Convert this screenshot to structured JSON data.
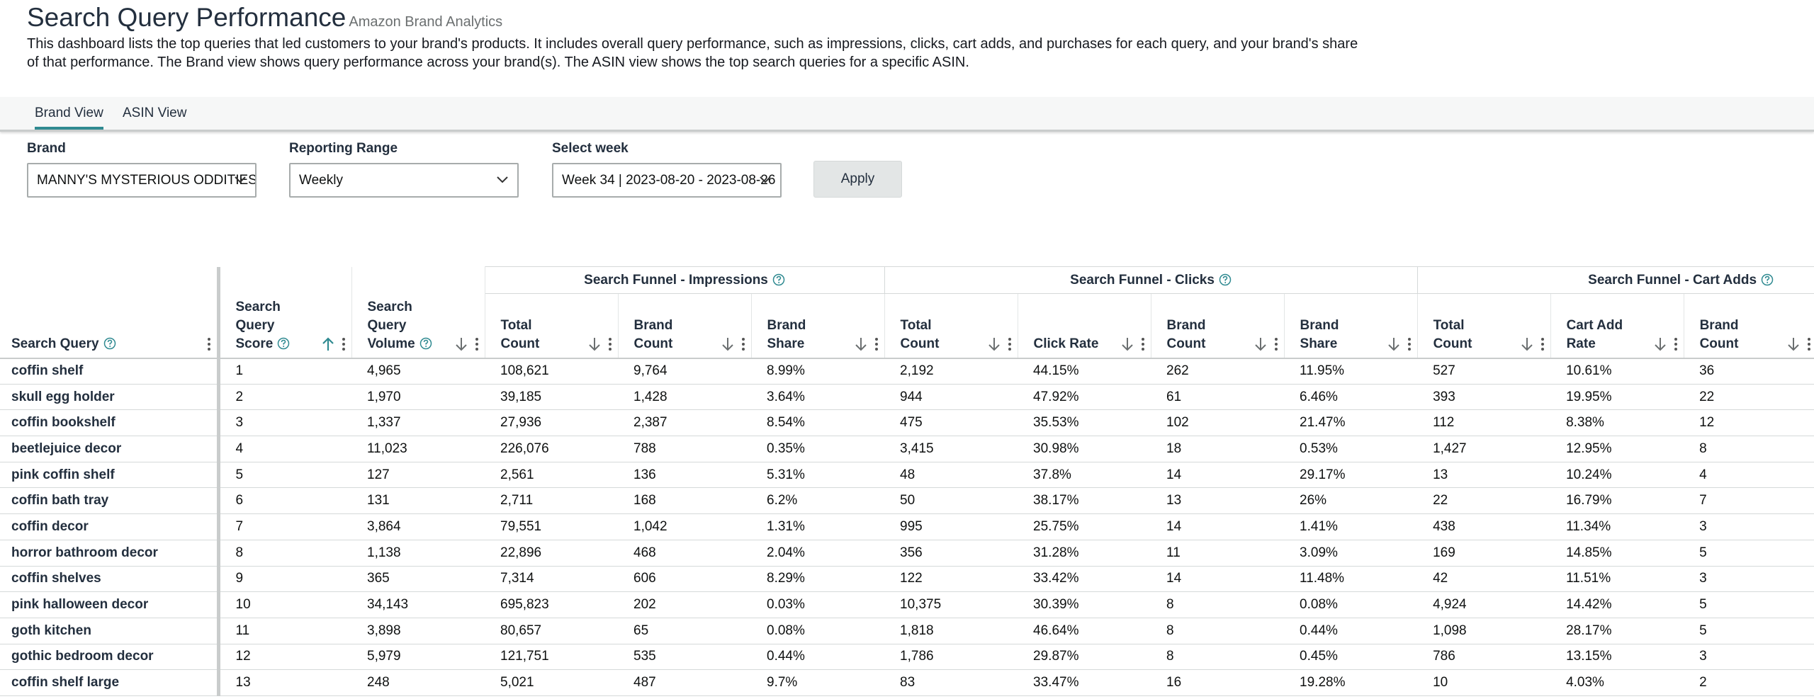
{
  "header": {
    "title": "Search Query Performance",
    "subtitle": "Amazon Brand Analytics",
    "description": "This dashboard lists the top queries that led customers to your brand's products. It includes overall query performance, such as impressions, clicks, cart adds, and purchases for each query, and your brand's share of that performance. The Brand view shows query performance across your brand(s). The ASIN view shows the top search queries for a specific ASIN."
  },
  "tabs": [
    "Brand View",
    "ASIN View"
  ],
  "filters": [
    {
      "label": "Brand",
      "value": "MANNY'S MYSTERIOUS ODDITIES"
    },
    {
      "label": "Reporting Range",
      "value": "Weekly"
    },
    {
      "label": "Select week",
      "value": "Week 34 | 2023-08-20 - 2023-08-26"
    }
  ],
  "apply": "Apply",
  "table": {
    "groups": [
      "Search Funnel - Impressions",
      "Search Funnel - Clicks",
      "Search Funnel - Cart Adds"
    ],
    "columns": [
      "Search Query",
      "Search Query Score",
      "Search Query Volume",
      "Total Count",
      "Brand Count",
      "Brand Share",
      "Total Count",
      "Click Rate",
      "Brand Count",
      "Brand Share",
      "Total Count",
      "Cart Add Rate",
      "Brand Count"
    ],
    "rows": [
      [
        "coffin shelf",
        "1",
        "4,965",
        "108,621",
        "9,764",
        "8.99%",
        "2,192",
        "44.15%",
        "262",
        "11.95%",
        "527",
        "10.61%",
        "36"
      ],
      [
        "skull egg holder",
        "2",
        "1,970",
        "39,185",
        "1,428",
        "3.64%",
        "944",
        "47.92%",
        "61",
        "6.46%",
        "393",
        "19.95%",
        "22"
      ],
      [
        "coffin bookshelf",
        "3",
        "1,337",
        "27,936",
        "2,387",
        "8.54%",
        "475",
        "35.53%",
        "102",
        "21.47%",
        "112",
        "8.38%",
        "12"
      ],
      [
        "beetlejuice decor",
        "4",
        "11,023",
        "226,076",
        "788",
        "0.35%",
        "3,415",
        "30.98%",
        "18",
        "0.53%",
        "1,427",
        "12.95%",
        "8"
      ],
      [
        "pink coffin shelf",
        "5",
        "127",
        "2,561",
        "136",
        "5.31%",
        "48",
        "37.8%",
        "14",
        "29.17%",
        "13",
        "10.24%",
        "4"
      ],
      [
        "coffin bath tray",
        "6",
        "131",
        "2,711",
        "168",
        "6.2%",
        "50",
        "38.17%",
        "13",
        "26%",
        "22",
        "16.79%",
        "7"
      ],
      [
        "coffin decor",
        "7",
        "3,864",
        "79,551",
        "1,042",
        "1.31%",
        "995",
        "25.75%",
        "14",
        "1.41%",
        "438",
        "11.34%",
        "3"
      ],
      [
        "horror bathroom decor",
        "8",
        "1,138",
        "22,896",
        "468",
        "2.04%",
        "356",
        "31.28%",
        "11",
        "3.09%",
        "169",
        "14.85%",
        "5"
      ],
      [
        "coffin shelves",
        "9",
        "365",
        "7,314",
        "606",
        "8.29%",
        "122",
        "33.42%",
        "14",
        "11.48%",
        "42",
        "11.51%",
        "3"
      ],
      [
        "pink halloween decor",
        "10",
        "34,143",
        "695,823",
        "202",
        "0.03%",
        "10,375",
        "30.39%",
        "8",
        "0.08%",
        "4,924",
        "14.42%",
        "5"
      ],
      [
        "goth kitchen",
        "11",
        "3,898",
        "80,657",
        "65",
        "0.08%",
        "1,818",
        "46.64%",
        "8",
        "0.44%",
        "1,098",
        "28.17%",
        "5"
      ],
      [
        "gothic bedroom decor",
        "12",
        "5,979",
        "121,751",
        "535",
        "0.44%",
        "1,786",
        "29.87%",
        "8",
        "0.45%",
        "786",
        "13.15%",
        "3"
      ],
      [
        "coffin shelf large",
        "13",
        "248",
        "5,021",
        "487",
        "9.7%",
        "83",
        "33.47%",
        "16",
        "19.28%",
        "10",
        "4.03%",
        "2"
      ]
    ]
  }
}
